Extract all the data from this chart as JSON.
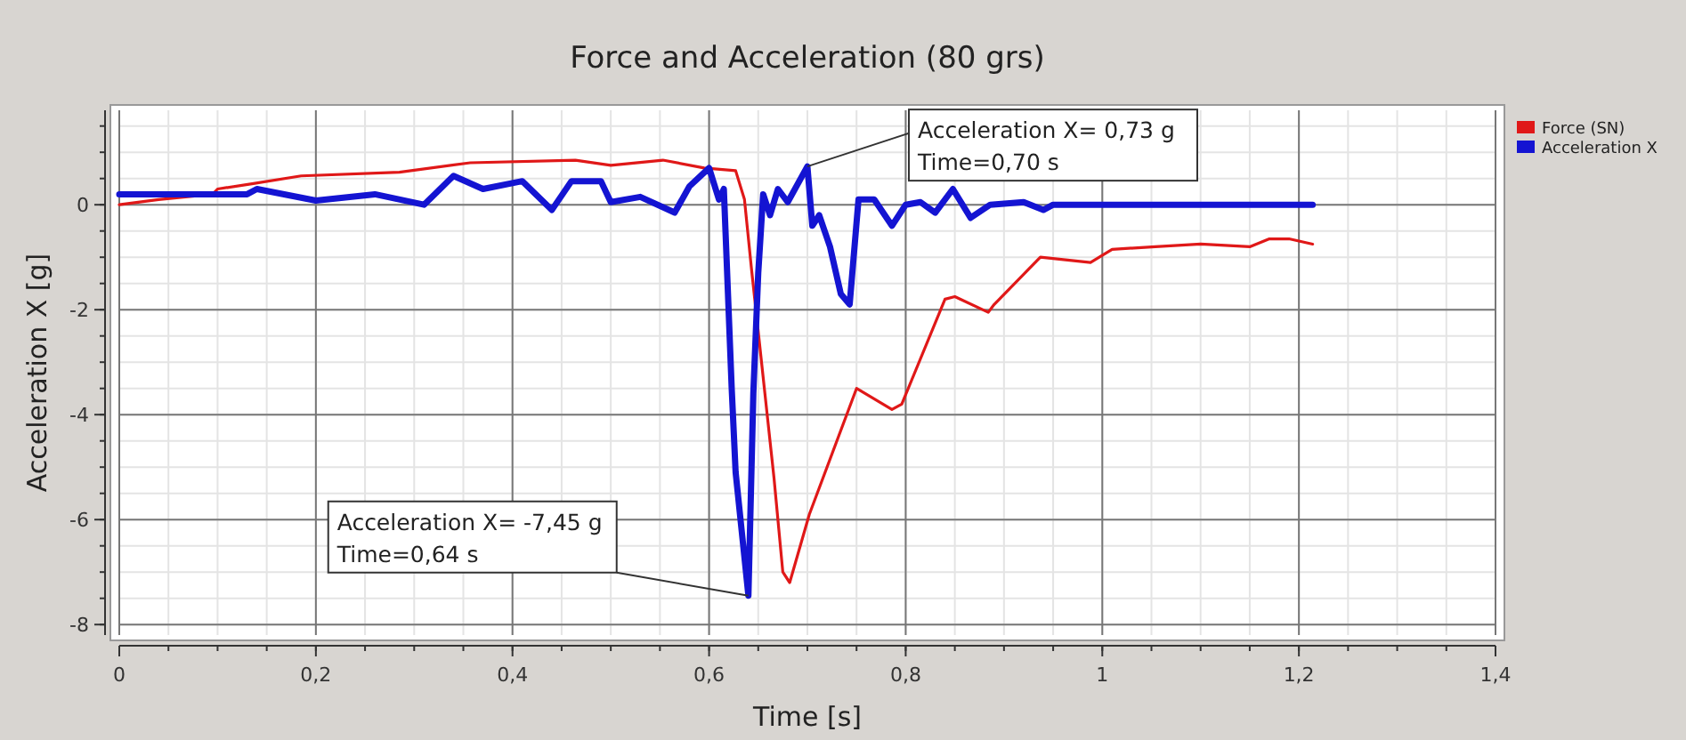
{
  "chart_data": {
    "type": "line",
    "title": "Force and Acceleration (80 grs)",
    "xlabel": "Time [s]",
    "ylabel": "Acceleration  X [g]",
    "xlim": [
      0,
      1.4
    ],
    "xticks": [
      0,
      {
        "value": 0.2,
        "label": "0,2"
      },
      {
        "value": 0.4,
        "label": "0,4"
      },
      {
        "value": 0.6,
        "label": "0,6"
      },
      {
        "value": 0.8,
        "label": "0,8"
      },
      1,
      {
        "value": 1.2,
        "label": "1,2"
      },
      {
        "value": 1.4,
        "label": "1,4"
      }
    ],
    "ylim": [
      -8.2,
      1.8
    ],
    "yticks": [
      -8,
      -6,
      -4,
      -2,
      0
    ],
    "grid": true,
    "legend": "right",
    "annotations": [
      {
        "text": "Acceleration X= -7,45 g\nTime=0,64 s",
        "x": 0.64,
        "y": -7.45
      },
      {
        "text": "Acceleration X= 0,73 g\nTime=0,70 s",
        "x": 0.7,
        "y": 0.73
      }
    ],
    "series": [
      {
        "name": "Force (SN)",
        "color": "#e01818",
        "x": [
          0,
          0.04,
          0.095,
          0.1,
          0.135,
          0.185,
          0.285,
          0.357,
          0.464,
          0.5,
          0.553,
          0.595,
          0.627,
          0.636,
          0.643,
          0.666,
          0.675,
          0.682,
          0.702,
          0.75,
          0.786,
          0.796,
          0.84,
          0.85,
          0.884,
          0.89,
          0.937,
          0.988,
          1.01,
          1.054,
          1.1,
          1.15,
          1.17,
          1.19,
          1.214
        ],
        "values": [
          0,
          0.1,
          0.2,
          0.3,
          0.4,
          0.55,
          0.62,
          0.8,
          0.85,
          0.75,
          0.85,
          0.7,
          0.65,
          0.1,
          -1.2,
          -5.2,
          -7,
          -7.2,
          -5.9,
          -3.5,
          -3.9,
          -3.8,
          -1.8,
          -1.75,
          -2.05,
          -1.9,
          -1,
          -1.1,
          -0.85,
          -0.8,
          -0.75,
          -0.8,
          -0.65,
          -0.65,
          -0.75
        ]
      },
      {
        "name": "Acceleration X",
        "color": "#1414d2",
        "x": [
          0,
          0.13,
          0.14,
          0.2,
          0.26,
          0.31,
          0.34,
          0.37,
          0.41,
          0.44,
          0.46,
          0.49,
          0.5,
          0.53,
          0.565,
          0.58,
          0.6,
          0.61,
          0.615,
          0.623,
          0.627,
          0.64,
          0.645,
          0.65,
          0.655,
          0.662,
          0.67,
          0.68,
          0.7,
          0.705,
          0.712,
          0.723,
          0.734,
          0.743,
          0.752,
          0.768,
          0.786,
          0.8,
          0.815,
          0.83,
          0.848,
          0.866,
          0.886,
          0.92,
          0.94,
          0.95,
          1.214
        ],
        "values": [
          0.2,
          0.2,
          0.3,
          0.08,
          0.2,
          0,
          0.55,
          0.3,
          0.45,
          -0.1,
          0.45,
          0.45,
          0.05,
          0.15,
          -0.15,
          0.35,
          0.7,
          0.1,
          0.3,
          -3.5,
          -5.1,
          -7.45,
          -3.6,
          -1.3,
          0.2,
          -0.2,
          0.3,
          0.05,
          0.73,
          -0.4,
          -0.2,
          -0.8,
          -1.7,
          -1.9,
          0.1,
          0.1,
          -0.4,
          0,
          0.05,
          -0.15,
          0.3,
          -0.25,
          0,
          0.05,
          -0.1,
          0,
          0
        ]
      }
    ]
  }
}
